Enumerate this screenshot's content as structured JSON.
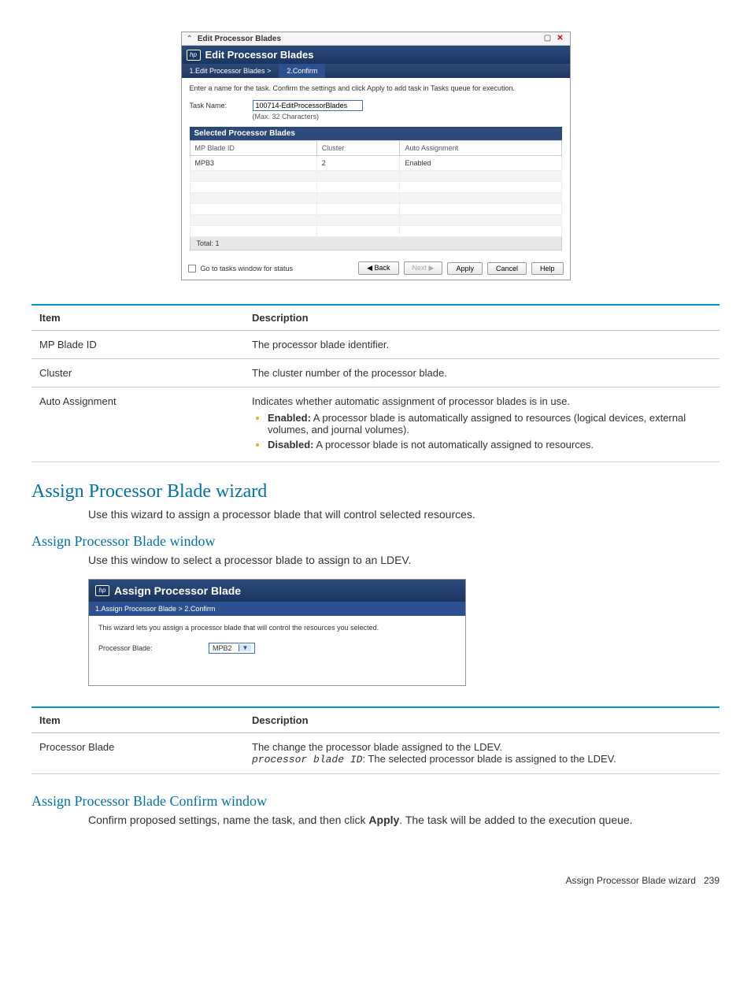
{
  "dialog1": {
    "titlebar": "Edit Processor Blades",
    "header_title": "Edit Processor Blades",
    "hp_logo_text": "hp",
    "breadcrumb": {
      "step1": "1.Edit Processor Blades >",
      "step2": "2.Confirm"
    },
    "instruction": "Enter a name for the task. Confirm the settings and click Apply to add task in Tasks queue for execution.",
    "task_name_label": "Task Name:",
    "task_name_value": "100714-EditProcessorBlades",
    "task_name_hint": "(Max. 32 Characters)",
    "selected_header": "Selected Processor Blades",
    "columns": {
      "c1": "MP Blade ID",
      "c2": "Cluster",
      "c3": "Auto Assignment"
    },
    "row1": {
      "c1": "MPB3",
      "c2": "2",
      "c3": "Enabled"
    },
    "total_label": "Total:  1",
    "footer": {
      "checkbox_label": "Go to tasks window for status",
      "back": "◀ Back",
      "next": "Next ▶",
      "apply": "Apply",
      "cancel": "Cancel",
      "help": "Help"
    }
  },
  "table1": {
    "h_item": "Item",
    "h_desc": "Description",
    "r1_item": "MP Blade ID",
    "r1_desc": "The processor blade identifier.",
    "r2_item": "Cluster",
    "r2_desc": "The cluster number of the processor blade.",
    "r3_item": "Auto Assignment",
    "r3_desc_intro": "Indicates whether automatic assignment of processor blades is in use.",
    "r3_b1_strong": "Enabled:",
    "r3_b1_rest": " A processor blade is automatically assigned to resources (logical devices, external volumes, and journal volumes).",
    "r3_b2_strong": "Disabled:",
    "r3_b2_rest": " A processor blade is not automatically assigned to resources."
  },
  "heading1": "Assign Processor Blade wizard",
  "para1": "Use this wizard to assign a processor blade that will control selected resources.",
  "heading2": "Assign Processor Blade window",
  "para2": "Use this window to select a processor blade to assign to an LDEV.",
  "dialog2": {
    "hp_logo_text": "hp",
    "title": "Assign Processor Blade",
    "breadcrumb": "1.Assign Processor Blade  >  2.Confirm",
    "instruction": "This wizard lets you assign a processor blade that will control the resources you selected.",
    "label": "Processor Blade:",
    "select_value": "MPB2",
    "caret": "▼"
  },
  "table2": {
    "h_item": "Item",
    "h_desc": "Description",
    "r1_item": "Processor Blade",
    "r1_line1": "The change the processor blade assigned to the LDEV.",
    "r1_mono": "processor blade ID",
    "r1_line2_rest": ": The selected processor blade is assigned to the LDEV."
  },
  "heading3": "Assign Processor Blade Confirm window",
  "para3_pre": "Confirm proposed settings, name the task, and then click ",
  "para3_strong": "Apply",
  "para3_post": ". The task will be added to the execution queue.",
  "footer_text": "Assign Processor Blade wizard",
  "footer_page": "239",
  "colors": {
    "accent_blue": "#0096d6",
    "heading_blue": "#0073a8",
    "dialog_header_start": "#2b4a7a",
    "dialog_header_end": "#1a3560",
    "bullet_orange": "#f5a623"
  }
}
